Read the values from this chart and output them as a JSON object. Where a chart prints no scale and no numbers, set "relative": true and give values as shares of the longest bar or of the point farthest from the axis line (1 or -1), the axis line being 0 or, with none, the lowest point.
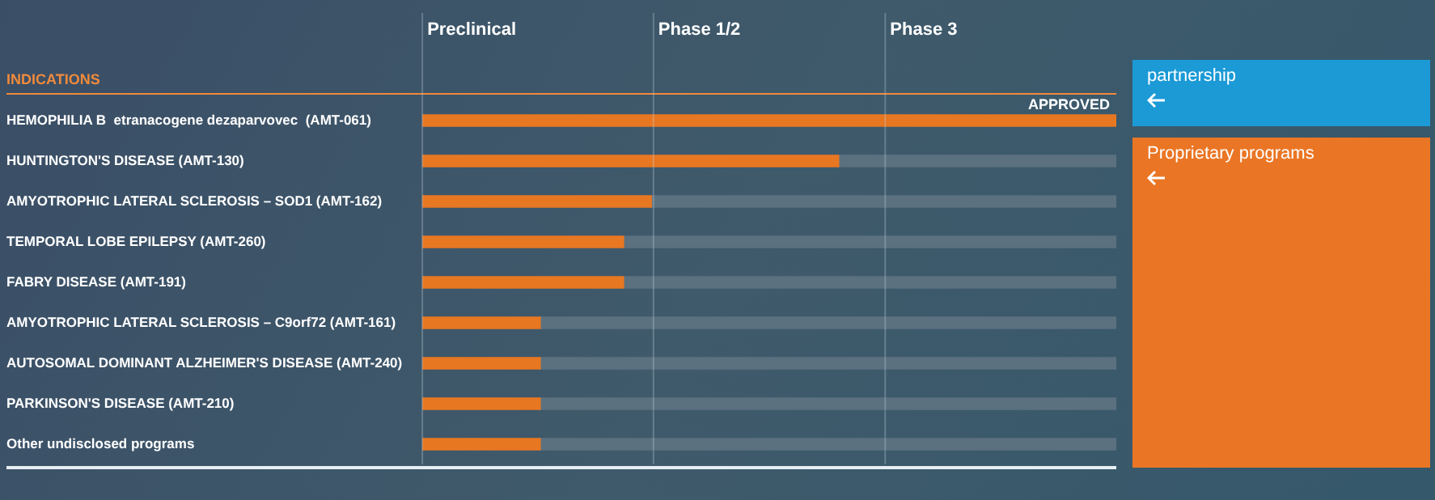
{
  "chart_data": {
    "type": "bar",
    "orientation": "horizontal",
    "stacked": true,
    "relative": true,
    "ylabel": "INDICATIONS",
    "categories": [
      "HEMOPHILIA B  etranacogene dezaparvovec  (AMT-061)",
      "HUNTINGTON'S DISEASE (AMT-130)",
      "AMYOTROPHIC LATERAL SCLEROSIS – SOD1 (AMT-162)",
      "TEMPORAL LOBE EPILEPSY (AMT-260)",
      "FABRY DISEASE (AMT-191)",
      "AMYOTROPHIC LATERAL SCLEROSIS – C9orf72 (AMT-161)",
      "AUTOSOMAL DOMINANT ALZHEIMER'S DISEASE (AMT-240)",
      "PARKINSON'S DISEASE (AMT-210)",
      "Other undisclosed programs"
    ],
    "series": [
      {
        "color": "#e87722",
        "values": [
          1,
          0.6,
          0.33,
          0.29,
          0.29,
          0.17,
          0.17,
          0.17,
          0.17
        ]
      },
      {
        "color": "#5b7180",
        "values": [
          0,
          0.4,
          0.67,
          0.71,
          0.71,
          0.83,
          0.83,
          0.83,
          0.83
        ]
      }
    ],
    "ref_lines": [
      {
        "axis": "x",
        "value": 0,
        "label": "Preclinical"
      },
      {
        "axis": "x",
        "value": 0.333,
        "label": "Phase 1/2"
      },
      {
        "axis": "x",
        "value": 0.667,
        "label": "Phase 3"
      }
    ],
    "annotations": [
      {
        "text": "APPROVED",
        "x": 1,
        "y": "HEMOPHILIA B  etranacogene dezaparvovec  (AMT-061)"
      },
      "partnership",
      "Proprietary programs"
    ]
  }
}
